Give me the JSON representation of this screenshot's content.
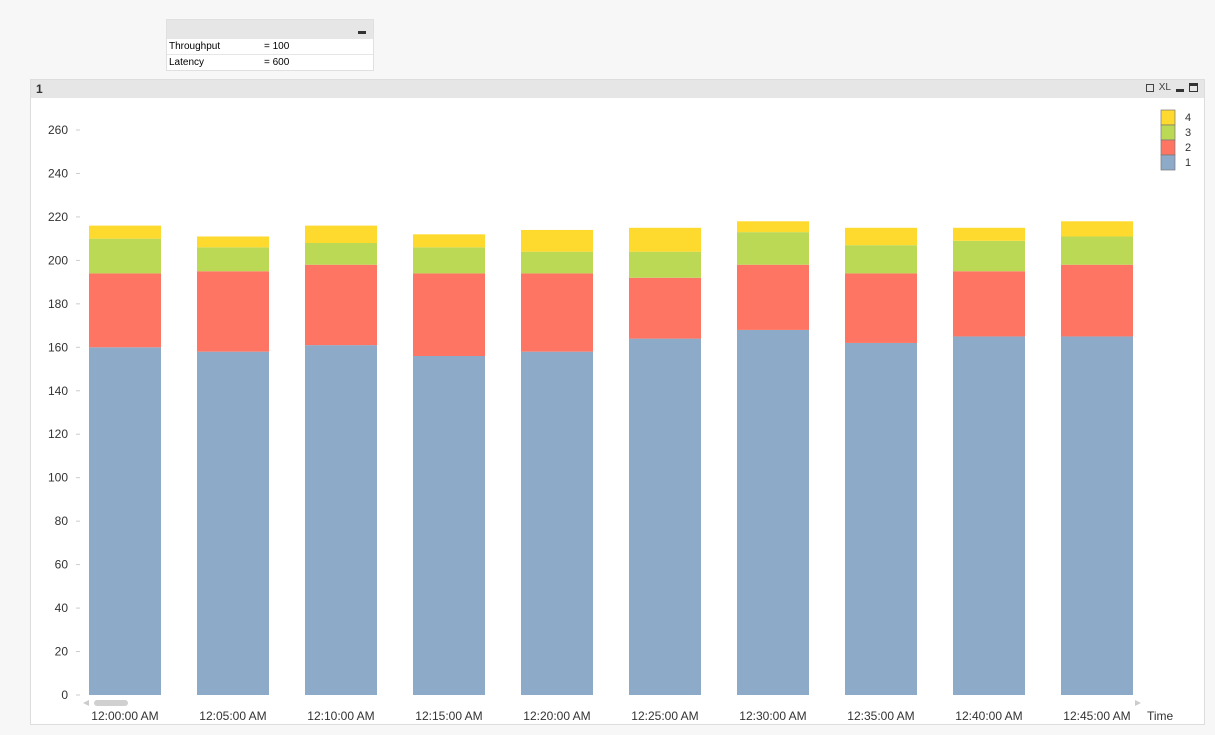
{
  "variables": [
    {
      "name": "Throughput",
      "value": "= 100"
    },
    {
      "name": "Latency",
      "value": "= 600"
    }
  ],
  "window": {
    "title": "1",
    "xl_label": "XL"
  },
  "chart_data": {
    "type": "bar",
    "stacked": true,
    "title": "",
    "xlabel": "Time",
    "ylabel": "",
    "ylim": [
      0,
      260
    ],
    "yticks": [
      0,
      20,
      40,
      60,
      80,
      100,
      120,
      140,
      160,
      180,
      200,
      220,
      240,
      260
    ],
    "categories": [
      "12:00:00 AM",
      "12:05:00 AM",
      "12:10:00 AM",
      "12:15:00 AM",
      "12:20:00 AM",
      "12:25:00 AM",
      "12:30:00 AM",
      "12:35:00 AM",
      "12:40:00 AM",
      "12:45:00 AM"
    ],
    "legend_position": "top-right",
    "series": [
      {
        "name": "1",
        "color": "#8eaac9",
        "values": [
          160,
          158,
          161,
          156,
          158,
          164,
          168,
          162,
          165,
          165
        ]
      },
      {
        "name": "2",
        "color": "#ff7563",
        "values": [
          34,
          37,
          37,
          38,
          36,
          28,
          30,
          32,
          30,
          33
        ]
      },
      {
        "name": "3",
        "color": "#bcd955",
        "values": [
          16,
          11,
          10,
          12,
          10,
          12,
          15,
          13,
          14,
          13
        ]
      },
      {
        "name": "4",
        "color": "#ffda2e",
        "values": [
          6,
          5,
          8,
          6,
          10,
          11,
          5,
          8,
          6,
          7
        ]
      }
    ]
  }
}
